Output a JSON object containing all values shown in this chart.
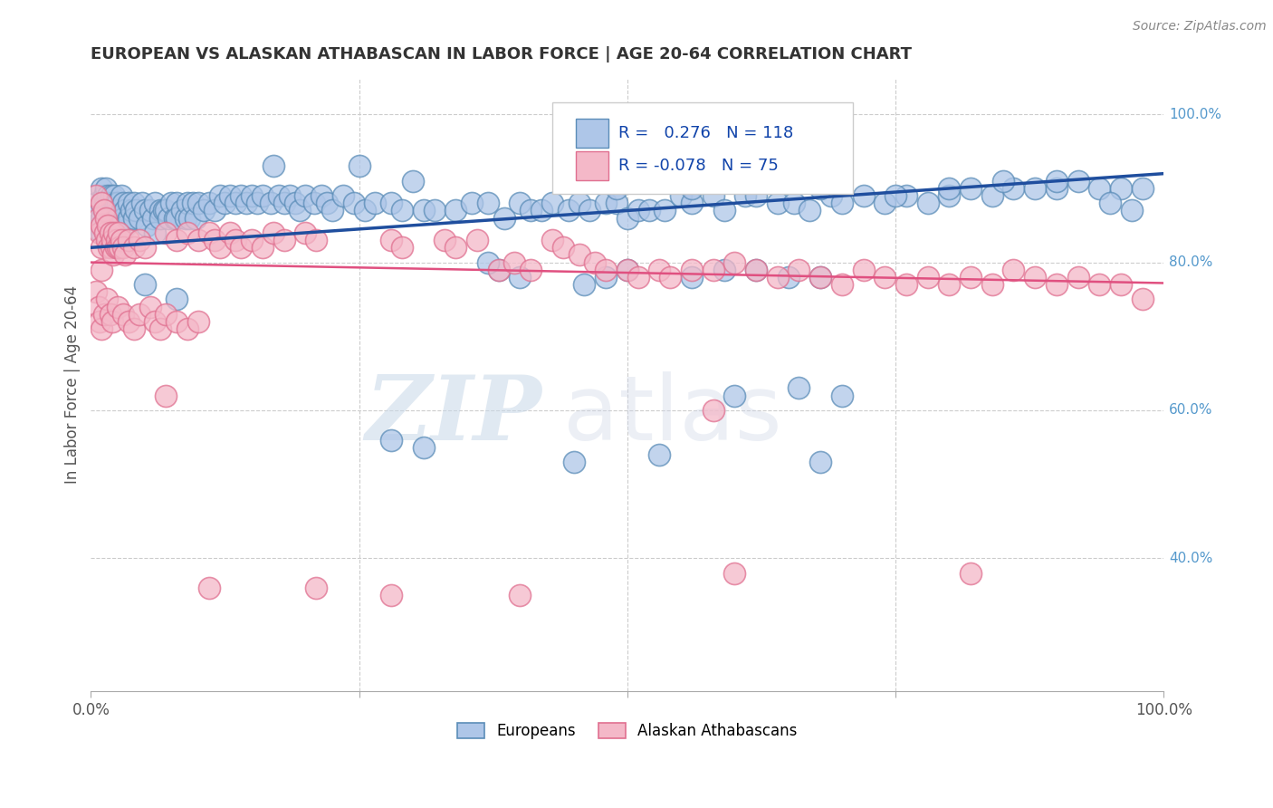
{
  "title": "EUROPEAN VS ALASKAN ATHABASCAN IN LABOR FORCE | AGE 20-64 CORRELATION CHART",
  "source": "Source: ZipAtlas.com",
  "ylabel": "In Labor Force | Age 20-64",
  "watermark_zip": "ZIP",
  "watermark_atlas": "atlas",
  "blue_R": 0.276,
  "blue_N": 118,
  "pink_R": -0.078,
  "pink_N": 75,
  "blue_fill": "#AEC6E8",
  "blue_edge": "#5B8DB8",
  "pink_fill": "#F4B8C8",
  "pink_edge": "#E07090",
  "blue_line_color": "#1F4E9E",
  "pink_line_color": "#E05080",
  "background_color": "#FFFFFF",
  "grid_color": "#CCCCCC",
  "title_color": "#333333",
  "source_color": "#888888",
  "ytick_color": "#5599CC",
  "xlim": [
    0.0,
    1.0
  ],
  "ylim": [
    0.22,
    1.05
  ],
  "yticks": [
    1.0,
    0.8,
    0.6,
    0.4
  ],
  "ytick_labels": [
    "100.0%",
    "80.0%",
    "60.0%",
    "40.0%"
  ],
  "blue_line_y": [
    0.82,
    0.92
  ],
  "pink_line_y": [
    0.8,
    0.772
  ],
  "blue_scatter": [
    [
      0.005,
      0.88
    ],
    [
      0.007,
      0.85
    ],
    [
      0.008,
      0.87
    ],
    [
      0.01,
      0.9
    ],
    [
      0.01,
      0.88
    ],
    [
      0.01,
      0.86
    ],
    [
      0.01,
      0.84
    ],
    [
      0.012,
      0.89
    ],
    [
      0.012,
      0.87
    ],
    [
      0.013,
      0.88
    ],
    [
      0.013,
      0.86
    ],
    [
      0.014,
      0.9
    ],
    [
      0.014,
      0.88
    ],
    [
      0.015,
      0.87
    ],
    [
      0.015,
      0.85
    ],
    [
      0.016,
      0.89
    ],
    [
      0.016,
      0.87
    ],
    [
      0.017,
      0.88
    ],
    [
      0.018,
      0.86
    ],
    [
      0.018,
      0.84
    ],
    [
      0.019,
      0.89
    ],
    [
      0.02,
      0.88
    ],
    [
      0.02,
      0.86
    ],
    [
      0.021,
      0.87
    ],
    [
      0.022,
      0.89
    ],
    [
      0.022,
      0.87
    ],
    [
      0.023,
      0.88
    ],
    [
      0.024,
      0.86
    ],
    [
      0.025,
      0.88
    ],
    [
      0.025,
      0.86
    ],
    [
      0.026,
      0.87
    ],
    [
      0.027,
      0.85
    ],
    [
      0.028,
      0.89
    ],
    [
      0.03,
      0.88
    ],
    [
      0.03,
      0.86
    ],
    [
      0.032,
      0.87
    ],
    [
      0.033,
      0.85
    ],
    [
      0.035,
      0.88
    ],
    [
      0.035,
      0.86
    ],
    [
      0.038,
      0.87
    ],
    [
      0.04,
      0.88
    ],
    [
      0.04,
      0.86
    ],
    [
      0.042,
      0.87
    ],
    [
      0.045,
      0.86
    ],
    [
      0.048,
      0.88
    ],
    [
      0.05,
      0.87
    ],
    [
      0.052,
      0.85
    ],
    [
      0.055,
      0.87
    ],
    [
      0.058,
      0.86
    ],
    [
      0.06,
      0.88
    ],
    [
      0.06,
      0.84
    ],
    [
      0.065,
      0.87
    ],
    [
      0.065,
      0.86
    ],
    [
      0.068,
      0.87
    ],
    [
      0.07,
      0.87
    ],
    [
      0.072,
      0.86
    ],
    [
      0.075,
      0.88
    ],
    [
      0.078,
      0.86
    ],
    [
      0.08,
      0.88
    ],
    [
      0.08,
      0.86
    ],
    [
      0.085,
      0.87
    ],
    [
      0.088,
      0.86
    ],
    [
      0.09,
      0.88
    ],
    [
      0.092,
      0.86
    ],
    [
      0.095,
      0.88
    ],
    [
      0.098,
      0.86
    ],
    [
      0.1,
      0.88
    ],
    [
      0.105,
      0.87
    ],
    [
      0.11,
      0.88
    ],
    [
      0.115,
      0.87
    ],
    [
      0.12,
      0.89
    ],
    [
      0.125,
      0.88
    ],
    [
      0.13,
      0.89
    ],
    [
      0.135,
      0.88
    ],
    [
      0.14,
      0.89
    ],
    [
      0.145,
      0.88
    ],
    [
      0.15,
      0.89
    ],
    [
      0.155,
      0.88
    ],
    [
      0.16,
      0.89
    ],
    [
      0.168,
      0.88
    ],
    [
      0.175,
      0.89
    ],
    [
      0.18,
      0.88
    ],
    [
      0.185,
      0.89
    ],
    [
      0.19,
      0.88
    ],
    [
      0.195,
      0.87
    ],
    [
      0.2,
      0.89
    ],
    [
      0.208,
      0.88
    ],
    [
      0.215,
      0.89
    ],
    [
      0.22,
      0.88
    ],
    [
      0.225,
      0.87
    ],
    [
      0.235,
      0.89
    ],
    [
      0.245,
      0.88
    ],
    [
      0.255,
      0.87
    ],
    [
      0.265,
      0.88
    ],
    [
      0.28,
      0.88
    ],
    [
      0.29,
      0.87
    ],
    [
      0.31,
      0.87
    ],
    [
      0.32,
      0.87
    ],
    [
      0.34,
      0.87
    ],
    [
      0.355,
      0.88
    ],
    [
      0.37,
      0.88
    ],
    [
      0.385,
      0.86
    ],
    [
      0.4,
      0.88
    ],
    [
      0.41,
      0.87
    ],
    [
      0.42,
      0.87
    ],
    [
      0.43,
      0.88
    ],
    [
      0.445,
      0.87
    ],
    [
      0.455,
      0.88
    ],
    [
      0.465,
      0.87
    ],
    [
      0.48,
      0.88
    ],
    [
      0.49,
      0.88
    ],
    [
      0.5,
      0.86
    ],
    [
      0.51,
      0.87
    ],
    [
      0.52,
      0.87
    ],
    [
      0.535,
      0.87
    ],
    [
      0.55,
      0.89
    ],
    [
      0.56,
      0.88
    ],
    [
      0.58,
      0.89
    ],
    [
      0.59,
      0.87
    ],
    [
      0.61,
      0.89
    ],
    [
      0.62,
      0.89
    ],
    [
      0.64,
      0.88
    ],
    [
      0.655,
      0.88
    ],
    [
      0.67,
      0.87
    ],
    [
      0.69,
      0.89
    ],
    [
      0.72,
      0.89
    ],
    [
      0.74,
      0.88
    ],
    [
      0.76,
      0.89
    ],
    [
      0.78,
      0.88
    ],
    [
      0.8,
      0.89
    ],
    [
      0.82,
      0.9
    ],
    [
      0.84,
      0.89
    ],
    [
      0.86,
      0.9
    ],
    [
      0.88,
      0.9
    ],
    [
      0.9,
      0.9
    ],
    [
      0.92,
      0.91
    ],
    [
      0.94,
      0.9
    ],
    [
      0.96,
      0.9
    ],
    [
      0.98,
      0.9
    ],
    [
      0.17,
      0.93
    ],
    [
      0.25,
      0.93
    ],
    [
      0.3,
      0.91
    ],
    [
      0.45,
      0.92
    ],
    [
      0.49,
      0.9
    ],
    [
      0.52,
      0.91
    ],
    [
      0.56,
      0.9
    ],
    [
      0.62,
      0.91
    ],
    [
      0.68,
      0.9
    ],
    [
      0.68,
      0.78
    ],
    [
      0.7,
      0.88
    ],
    [
      0.38,
      0.79
    ],
    [
      0.4,
      0.78
    ],
    [
      0.37,
      0.8
    ],
    [
      0.46,
      0.77
    ],
    [
      0.48,
      0.78
    ],
    [
      0.5,
      0.79
    ],
    [
      0.56,
      0.78
    ],
    [
      0.59,
      0.79
    ],
    [
      0.62,
      0.79
    ],
    [
      0.65,
      0.78
    ],
    [
      0.66,
      0.63
    ],
    [
      0.7,
      0.62
    ],
    [
      0.75,
      0.89
    ],
    [
      0.8,
      0.9
    ],
    [
      0.85,
      0.91
    ],
    [
      0.9,
      0.91
    ],
    [
      0.95,
      0.88
    ],
    [
      0.97,
      0.87
    ],
    [
      0.05,
      0.77
    ],
    [
      0.08,
      0.75
    ],
    [
      0.28,
      0.56
    ],
    [
      0.31,
      0.55
    ],
    [
      0.45,
      0.53
    ],
    [
      0.53,
      0.54
    ],
    [
      0.6,
      0.62
    ],
    [
      0.68,
      0.53
    ]
  ],
  "pink_scatter": [
    [
      0.005,
      0.89
    ],
    [
      0.007,
      0.86
    ],
    [
      0.008,
      0.84
    ],
    [
      0.01,
      0.88
    ],
    [
      0.01,
      0.85
    ],
    [
      0.01,
      0.82
    ],
    [
      0.01,
      0.79
    ],
    [
      0.012,
      0.87
    ],
    [
      0.013,
      0.84
    ],
    [
      0.014,
      0.86
    ],
    [
      0.015,
      0.83
    ],
    [
      0.016,
      0.85
    ],
    [
      0.017,
      0.82
    ],
    [
      0.018,
      0.84
    ],
    [
      0.019,
      0.82
    ],
    [
      0.02,
      0.83
    ],
    [
      0.021,
      0.81
    ],
    [
      0.022,
      0.84
    ],
    [
      0.023,
      0.82
    ],
    [
      0.024,
      0.83
    ],
    [
      0.025,
      0.82
    ],
    [
      0.026,
      0.84
    ],
    [
      0.027,
      0.82
    ],
    [
      0.028,
      0.83
    ],
    [
      0.03,
      0.82
    ],
    [
      0.032,
      0.81
    ],
    [
      0.035,
      0.83
    ],
    [
      0.04,
      0.82
    ],
    [
      0.045,
      0.83
    ],
    [
      0.05,
      0.82
    ],
    [
      0.005,
      0.76
    ],
    [
      0.007,
      0.74
    ],
    [
      0.008,
      0.72
    ],
    [
      0.01,
      0.71
    ],
    [
      0.012,
      0.73
    ],
    [
      0.015,
      0.75
    ],
    [
      0.018,
      0.73
    ],
    [
      0.02,
      0.72
    ],
    [
      0.025,
      0.74
    ],
    [
      0.03,
      0.73
    ],
    [
      0.035,
      0.72
    ],
    [
      0.04,
      0.71
    ],
    [
      0.045,
      0.73
    ],
    [
      0.055,
      0.74
    ],
    [
      0.06,
      0.72
    ],
    [
      0.065,
      0.71
    ],
    [
      0.07,
      0.73
    ],
    [
      0.08,
      0.72
    ],
    [
      0.09,
      0.71
    ],
    [
      0.1,
      0.72
    ],
    [
      0.07,
      0.84
    ],
    [
      0.08,
      0.83
    ],
    [
      0.09,
      0.84
    ],
    [
      0.1,
      0.83
    ],
    [
      0.11,
      0.84
    ],
    [
      0.115,
      0.83
    ],
    [
      0.12,
      0.82
    ],
    [
      0.13,
      0.84
    ],
    [
      0.135,
      0.83
    ],
    [
      0.14,
      0.82
    ],
    [
      0.15,
      0.83
    ],
    [
      0.16,
      0.82
    ],
    [
      0.17,
      0.84
    ],
    [
      0.18,
      0.83
    ],
    [
      0.2,
      0.84
    ],
    [
      0.21,
      0.83
    ],
    [
      0.07,
      0.62
    ],
    [
      0.11,
      0.36
    ],
    [
      0.21,
      0.36
    ],
    [
      0.28,
      0.83
    ],
    [
      0.29,
      0.82
    ],
    [
      0.33,
      0.83
    ],
    [
      0.34,
      0.82
    ],
    [
      0.36,
      0.83
    ],
    [
      0.38,
      0.79
    ],
    [
      0.395,
      0.8
    ],
    [
      0.41,
      0.79
    ],
    [
      0.43,
      0.83
    ],
    [
      0.44,
      0.82
    ],
    [
      0.455,
      0.81
    ],
    [
      0.47,
      0.8
    ],
    [
      0.48,
      0.79
    ],
    [
      0.5,
      0.79
    ],
    [
      0.51,
      0.78
    ],
    [
      0.53,
      0.79
    ],
    [
      0.54,
      0.78
    ],
    [
      0.56,
      0.79
    ],
    [
      0.58,
      0.79
    ],
    [
      0.6,
      0.8
    ],
    [
      0.58,
      0.6
    ],
    [
      0.62,
      0.79
    ],
    [
      0.64,
      0.78
    ],
    [
      0.66,
      0.79
    ],
    [
      0.68,
      0.78
    ],
    [
      0.7,
      0.77
    ],
    [
      0.72,
      0.79
    ],
    [
      0.74,
      0.78
    ],
    [
      0.76,
      0.77
    ],
    [
      0.78,
      0.78
    ],
    [
      0.8,
      0.77
    ],
    [
      0.82,
      0.78
    ],
    [
      0.84,
      0.77
    ],
    [
      0.86,
      0.79
    ],
    [
      0.88,
      0.78
    ],
    [
      0.9,
      0.77
    ],
    [
      0.92,
      0.78
    ],
    [
      0.94,
      0.77
    ],
    [
      0.96,
      0.77
    ],
    [
      0.98,
      0.75
    ],
    [
      0.6,
      0.38
    ],
    [
      0.82,
      0.38
    ],
    [
      0.28,
      0.35
    ],
    [
      0.4,
      0.35
    ]
  ]
}
